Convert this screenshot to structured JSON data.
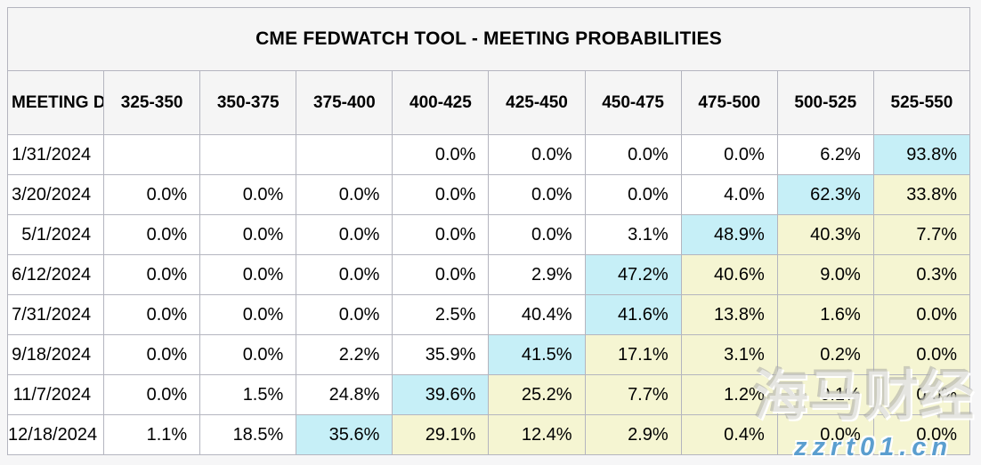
{
  "title": "CME FEDWATCH TOOL - MEETING PROBABILITIES",
  "colors": {
    "highlight_cyan": "#c6eff7",
    "highlight_yellow": "#f5f5d2",
    "header_bg": "#f5f5f5",
    "row_bg": "#ffffff",
    "border": "#b4b5bf",
    "watermark_blue": "#5b9ecf"
  },
  "table": {
    "columns": [
      "MEETING DATE",
      "325-350",
      "350-375",
      "375-400",
      "400-425",
      "425-450",
      "450-475",
      "475-500",
      "500-525",
      "525-550"
    ],
    "rows": [
      {
        "date": "1/31/2024",
        "cells": [
          {
            "text": "",
            "bg": "none"
          },
          {
            "text": "",
            "bg": "none"
          },
          {
            "text": "",
            "bg": "none"
          },
          {
            "text": "0.0%",
            "bg": "none"
          },
          {
            "text": "0.0%",
            "bg": "none"
          },
          {
            "text": "0.0%",
            "bg": "none"
          },
          {
            "text": "0.0%",
            "bg": "none"
          },
          {
            "text": "6.2%",
            "bg": "none"
          },
          {
            "text": "93.8%",
            "bg": "cyan"
          }
        ]
      },
      {
        "date": "3/20/2024",
        "cells": [
          {
            "text": "0.0%",
            "bg": "none"
          },
          {
            "text": "0.0%",
            "bg": "none"
          },
          {
            "text": "0.0%",
            "bg": "none"
          },
          {
            "text": "0.0%",
            "bg": "none"
          },
          {
            "text": "0.0%",
            "bg": "none"
          },
          {
            "text": "0.0%",
            "bg": "none"
          },
          {
            "text": "4.0%",
            "bg": "none"
          },
          {
            "text": "62.3%",
            "bg": "cyan"
          },
          {
            "text": "33.8%",
            "bg": "yellow"
          }
        ]
      },
      {
        "date": "5/1/2024",
        "cells": [
          {
            "text": "0.0%",
            "bg": "none"
          },
          {
            "text": "0.0%",
            "bg": "none"
          },
          {
            "text": "0.0%",
            "bg": "none"
          },
          {
            "text": "0.0%",
            "bg": "none"
          },
          {
            "text": "0.0%",
            "bg": "none"
          },
          {
            "text": "3.1%",
            "bg": "none"
          },
          {
            "text": "48.9%",
            "bg": "cyan"
          },
          {
            "text": "40.3%",
            "bg": "yellow"
          },
          {
            "text": "7.7%",
            "bg": "yellow"
          }
        ]
      },
      {
        "date": "6/12/2024",
        "cells": [
          {
            "text": "0.0%",
            "bg": "none"
          },
          {
            "text": "0.0%",
            "bg": "none"
          },
          {
            "text": "0.0%",
            "bg": "none"
          },
          {
            "text": "0.0%",
            "bg": "none"
          },
          {
            "text": "2.9%",
            "bg": "none"
          },
          {
            "text": "47.2%",
            "bg": "cyan"
          },
          {
            "text": "40.6%",
            "bg": "yellow"
          },
          {
            "text": "9.0%",
            "bg": "yellow"
          },
          {
            "text": "0.3%",
            "bg": "yellow"
          }
        ]
      },
      {
        "date": "7/31/2024",
        "cells": [
          {
            "text": "0.0%",
            "bg": "none"
          },
          {
            "text": "0.0%",
            "bg": "none"
          },
          {
            "text": "0.0%",
            "bg": "none"
          },
          {
            "text": "2.5%",
            "bg": "none"
          },
          {
            "text": "40.4%",
            "bg": "none"
          },
          {
            "text": "41.6%",
            "bg": "cyan"
          },
          {
            "text": "13.8%",
            "bg": "yellow"
          },
          {
            "text": "1.6%",
            "bg": "yellow"
          },
          {
            "text": "0.0%",
            "bg": "yellow"
          }
        ]
      },
      {
        "date": "9/18/2024",
        "cells": [
          {
            "text": "0.0%",
            "bg": "none"
          },
          {
            "text": "0.0%",
            "bg": "none"
          },
          {
            "text": "2.2%",
            "bg": "none"
          },
          {
            "text": "35.9%",
            "bg": "none"
          },
          {
            "text": "41.5%",
            "bg": "cyan"
          },
          {
            "text": "17.1%",
            "bg": "yellow"
          },
          {
            "text": "3.1%",
            "bg": "yellow"
          },
          {
            "text": "0.2%",
            "bg": "yellow"
          },
          {
            "text": "0.0%",
            "bg": "yellow"
          }
        ]
      },
      {
        "date": "11/7/2024",
        "cells": [
          {
            "text": "0.0%",
            "bg": "none"
          },
          {
            "text": "1.5%",
            "bg": "none"
          },
          {
            "text": "24.8%",
            "bg": "none"
          },
          {
            "text": "39.6%",
            "bg": "cyan"
          },
          {
            "text": "25.2%",
            "bg": "yellow"
          },
          {
            "text": "7.7%",
            "bg": "yellow"
          },
          {
            "text": "1.2%",
            "bg": "yellow"
          },
          {
            "text": "0.1%",
            "bg": "yellow"
          },
          {
            "text": "0.0%",
            "bg": "yellow"
          }
        ]
      },
      {
        "date": "12/18/2024",
        "cells": [
          {
            "text": "1.1%",
            "bg": "none"
          },
          {
            "text": "18.5%",
            "bg": "none"
          },
          {
            "text": "35.6%",
            "bg": "cyan"
          },
          {
            "text": "29.1%",
            "bg": "yellow"
          },
          {
            "text": "12.4%",
            "bg": "yellow"
          },
          {
            "text": "2.9%",
            "bg": "yellow"
          },
          {
            "text": "0.4%",
            "bg": "yellow"
          },
          {
            "text": "0.0%",
            "bg": "yellow"
          },
          {
            "text": "0.0%",
            "bg": "yellow"
          }
        ]
      }
    ]
  },
  "watermark": {
    "brand": "海马财经",
    "url": "zzrt01.cn"
  }
}
